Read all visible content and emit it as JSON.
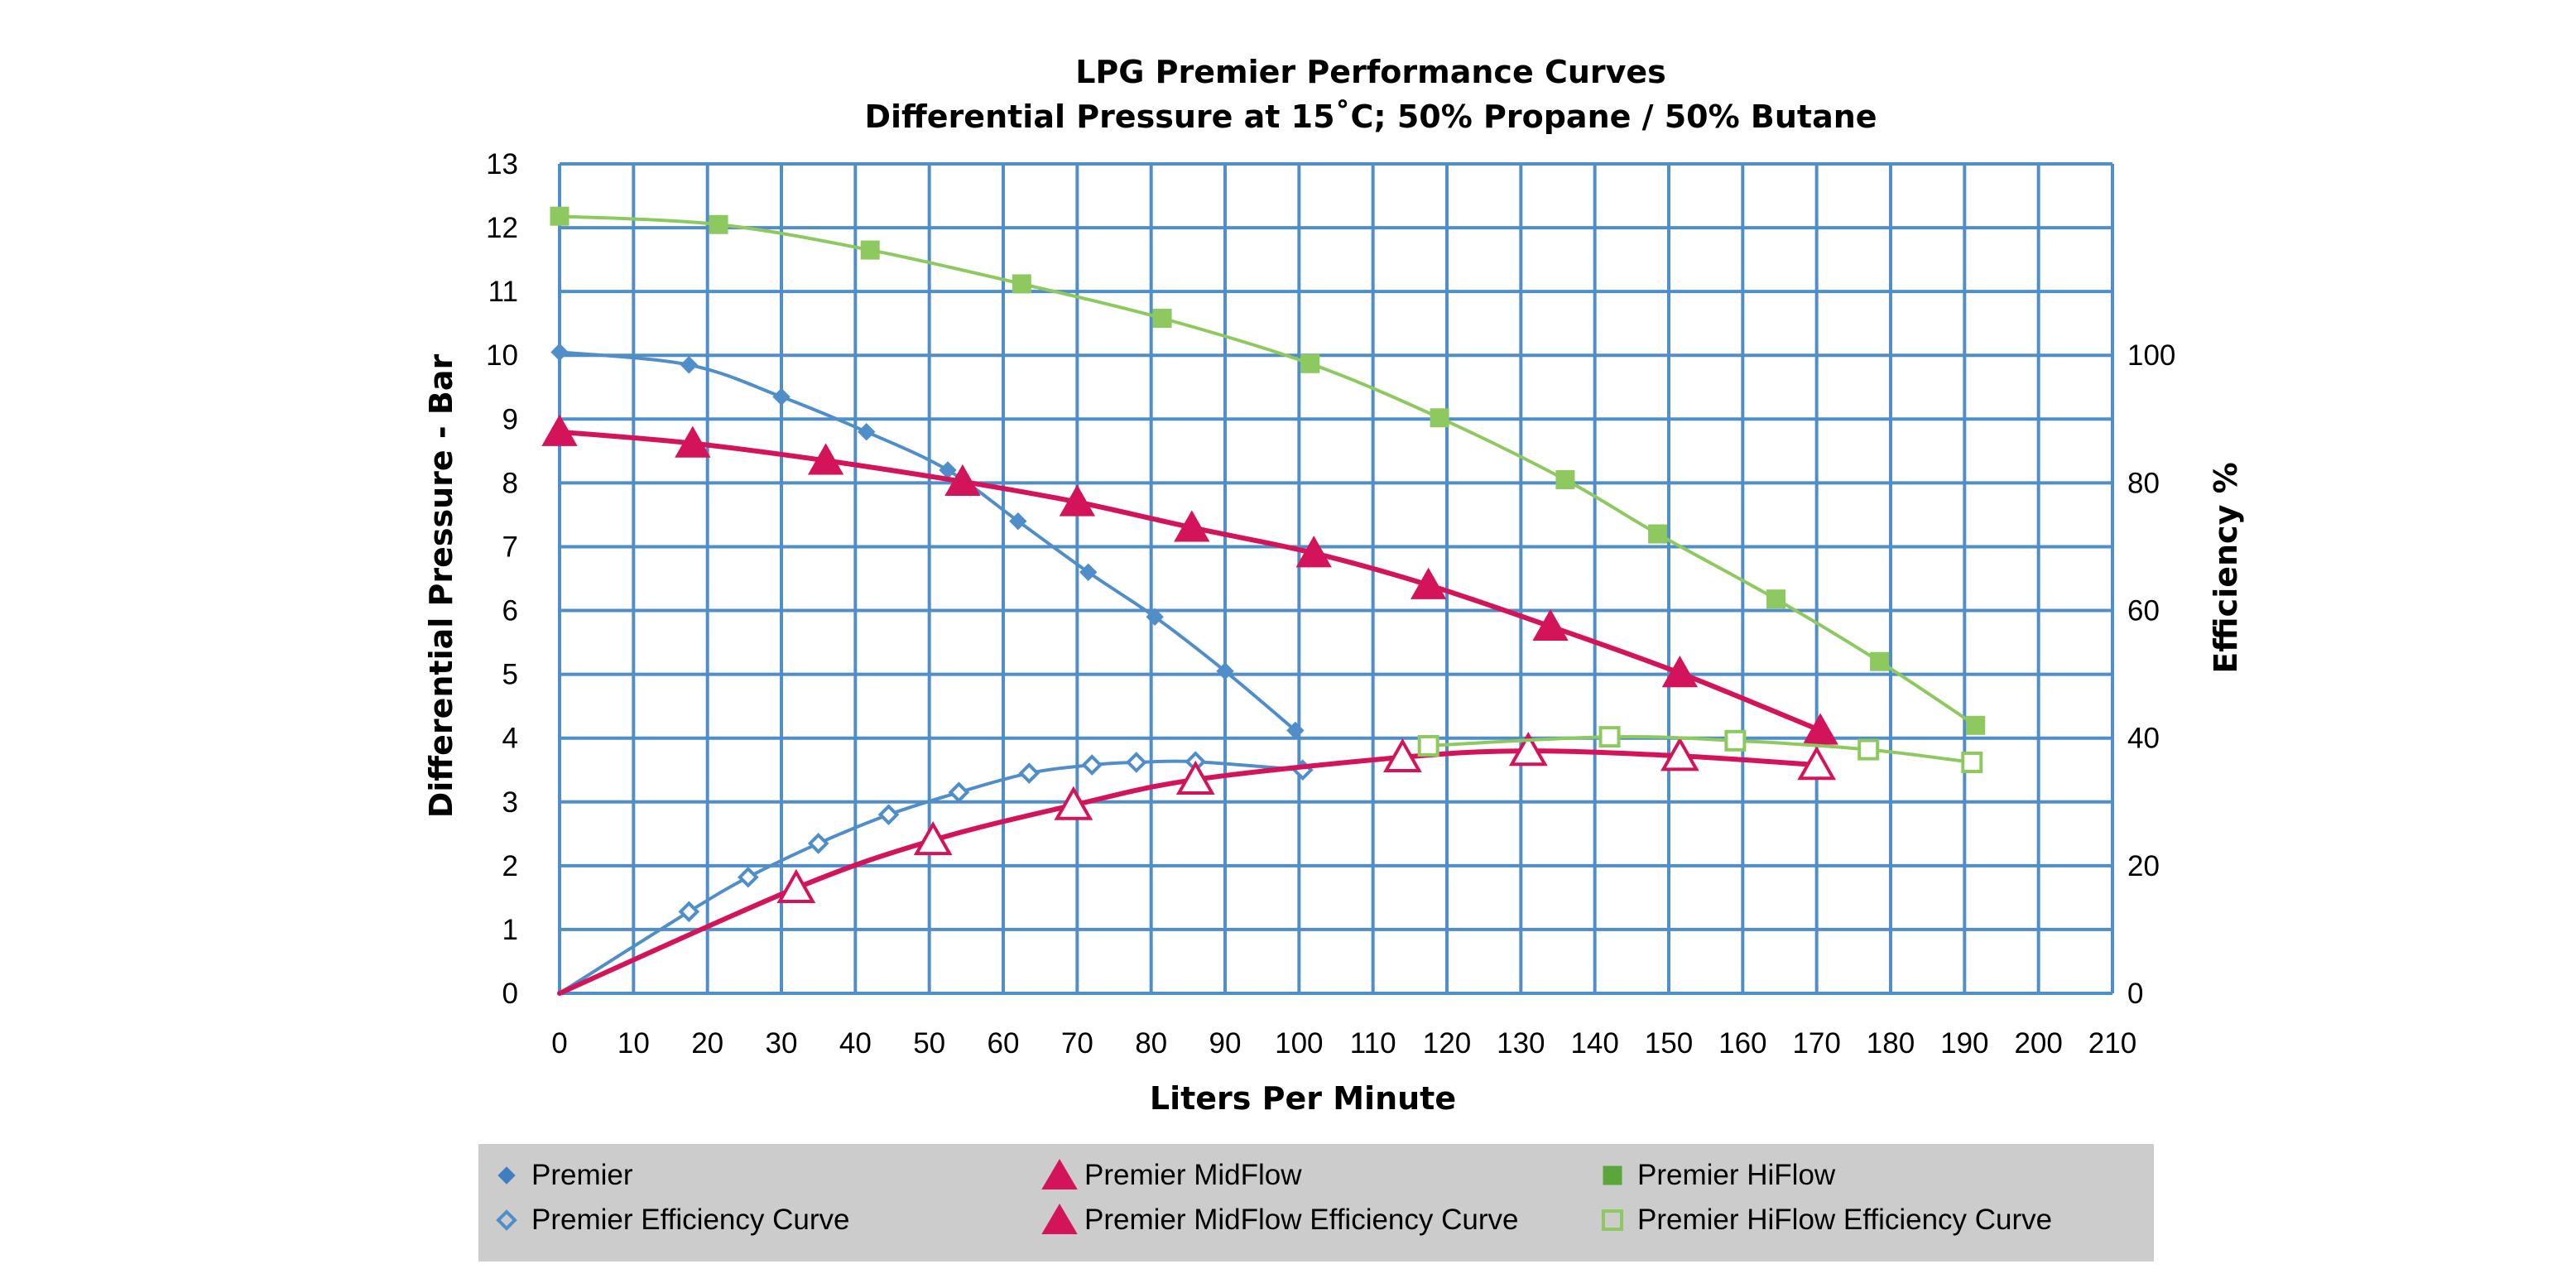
{
  "chart_data": {
    "type": "line",
    "title": "LPG Premier Performance Curves",
    "subtitle": "Differential Pressure at 15˚C; 50% Propane / 50% Butane",
    "xlabel": "Liters Per Minute",
    "ylabel": "Differential Pressure - Bar",
    "y2label": "Efficiency %",
    "xlim": [
      0,
      210
    ],
    "ylim": [
      0,
      13
    ],
    "y2lim": [
      0,
      130
    ],
    "x_ticks": [
      "0",
      "10",
      "20",
      "30",
      "40",
      "50",
      "60",
      "70",
      "80",
      "90",
      "100",
      "110",
      "120",
      "130",
      "140",
      "150",
      "160",
      "170",
      "180",
      "190",
      "200",
      "210"
    ],
    "y_ticks": [
      "0",
      "1",
      "2",
      "3",
      "4",
      "5",
      "6",
      "7",
      "8",
      "9",
      "10",
      "11",
      "12",
      "13"
    ],
    "y2_ticks": [
      "0",
      "20",
      "40",
      "60",
      "80",
      "100"
    ],
    "grid": true,
    "legend_position": "bottom",
    "series": [
      {
        "name": "Premier",
        "axis": "left",
        "color": "#4f8ec9",
        "marker": "diamond",
        "filled": true,
        "width": 4,
        "points": [
          [
            0,
            10.05
          ],
          [
            17.5,
            9.85
          ],
          [
            30,
            9.35
          ],
          [
            41.5,
            8.8
          ],
          [
            52.5,
            8.2
          ],
          [
            62,
            7.4
          ],
          [
            71.5,
            6.6
          ],
          [
            80.5,
            5.9
          ],
          [
            90,
            5.05
          ],
          [
            99.5,
            4.12
          ]
        ]
      },
      {
        "name": "Premier Efficiency Curve",
        "axis": "right",
        "color": "#4f8ec9",
        "marker": "diamond",
        "filled": false,
        "width": 4,
        "points": [
          [
            0,
            0
          ],
          [
            17.5,
            12.8
          ],
          [
            25.5,
            18.2
          ],
          [
            35,
            23.5
          ],
          [
            44.5,
            28
          ],
          [
            54,
            31.5
          ],
          [
            63.5,
            34.5
          ],
          [
            72,
            35.8
          ],
          [
            78,
            36.2
          ],
          [
            86,
            36.3
          ],
          [
            100.5,
            35
          ]
        ]
      },
      {
        "name": "Premier MidFlow",
        "axis": "left",
        "color": "#d4145a",
        "marker": "triangle",
        "filled": true,
        "width": 6,
        "points": [
          [
            0,
            8.8
          ],
          [
            18,
            8.62
          ],
          [
            36,
            8.35
          ],
          [
            54.5,
            8.02
          ],
          [
            70,
            7.7
          ],
          [
            85.5,
            7.3
          ],
          [
            102,
            6.9
          ],
          [
            117.5,
            6.4
          ],
          [
            134,
            5.75
          ],
          [
            151.5,
            5.02
          ],
          [
            170.5,
            4.12
          ]
        ]
      },
      {
        "name": "Premier MidFlow Efficiency Curve",
        "axis": "right",
        "color": "#d4145a",
        "marker": "triangle",
        "filled": false,
        "width": 6,
        "points": [
          [
            0,
            0
          ],
          [
            32,
            16.5
          ],
          [
            50.5,
            24
          ],
          [
            69.5,
            29.5
          ],
          [
            86,
            33.5
          ],
          [
            114,
            37
          ],
          [
            131,
            38
          ],
          [
            151.5,
            37.2
          ],
          [
            170,
            35.8
          ]
        ]
      },
      {
        "name": "Premier HiFlow",
        "axis": "left",
        "color": "#8dc95f",
        "marker": "square",
        "filled": true,
        "width": 4,
        "points": [
          [
            0,
            12.18
          ],
          [
            21.5,
            12.05
          ],
          [
            42,
            11.65
          ],
          [
            62.5,
            11.12
          ],
          [
            81.5,
            10.58
          ],
          [
            101.5,
            9.87
          ],
          [
            119,
            9.02
          ],
          [
            136,
            8.05
          ],
          [
            148.5,
            7.2
          ],
          [
            164.5,
            6.18
          ],
          [
            178.5,
            5.2
          ],
          [
            191.5,
            4.2
          ]
        ]
      },
      {
        "name": "Premier HiFlow Efficiency Curve",
        "axis": "right",
        "color": "#8dc95f",
        "marker": "square",
        "filled": false,
        "width": 4,
        "points": [
          [
            117.5,
            38.8
          ],
          [
            142,
            40.2
          ],
          [
            159,
            39.6
          ],
          [
            177,
            38.2
          ],
          [
            191,
            36.2
          ]
        ]
      }
    ]
  }
}
